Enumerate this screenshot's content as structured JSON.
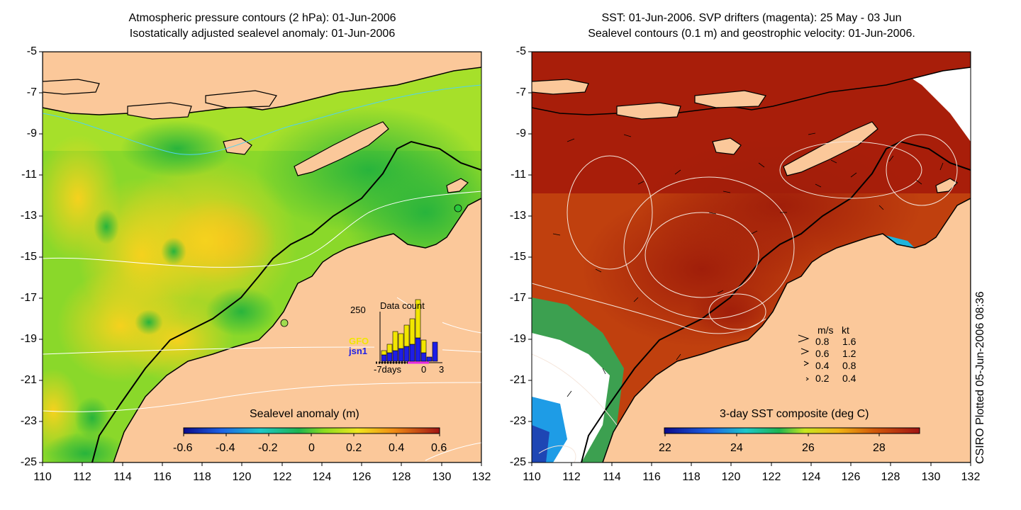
{
  "left_panel": {
    "title_line1": "Atmospheric pressure contours (2 hPa): 01-Jun-2006",
    "title_line2": "Isostatically adjusted sealevel anomaly: 01-Jun-2006",
    "colorbar_title": "Sealevel anomaly (m)",
    "colorbar_ticks": [
      "-0.6",
      "-0.4",
      "-0.2",
      "0",
      "0.2",
      "0.4",
      "0.6"
    ],
    "inset": {
      "title": "Data count",
      "y_tick": "250",
      "x_ticks": [
        "-7days",
        "0",
        "3"
      ],
      "sat1": "GFO",
      "sat2": "jsn1",
      "gfo_color": "#f2e600",
      "jsn1_color": "#1e1ee6",
      "bars": [
        {
          "gfo": 0.1,
          "jsn1": 0.15
        },
        {
          "gfo": 0.2,
          "jsn1": 0.2
        },
        {
          "gfo": 0.45,
          "jsn1": 0.25
        },
        {
          "gfo": 0.35,
          "jsn1": 0.3
        },
        {
          "gfo": 0.5,
          "jsn1": 0.35
        },
        {
          "gfo": 0.6,
          "jsn1": 0.4
        },
        {
          "gfo": 0.9,
          "jsn1": 0.55
        },
        {
          "gfo": 0.3,
          "jsn1": 0.2
        },
        {
          "gfo": 0.0,
          "jsn1": 0.1
        },
        {
          "gfo": 0.0,
          "jsn1": 0.45
        }
      ]
    }
  },
  "right_panel": {
    "title_line1": "SST: 01-Jun-2006. SVP drifters (magenta): 25 May - 03 Jun",
    "title_line2": "Sealevel contours (0.1 m) and geostrophic velocity: 01-Jun-2006.",
    "colorbar_title": "3-day SST composite (deg C)",
    "colorbar_ticks": [
      "22",
      "24",
      "26",
      "28"
    ],
    "velocity_legend": {
      "header_ms": "m/s",
      "header_kt": "kt",
      "rows": [
        {
          "ms": "0.8",
          "kt": "1.6"
        },
        {
          "ms": "0.6",
          "kt": "1.2"
        },
        {
          "ms": "0.4",
          "kt": "0.8"
        },
        {
          "ms": "0.2",
          "kt": "0.4"
        }
      ]
    }
  },
  "y_ticks": [
    "-5",
    "-7",
    "-9",
    "-11",
    "-13",
    "-15",
    "-17",
    "-19",
    "-21",
    "-23",
    "-25"
  ],
  "x_ticks": [
    "110",
    "112",
    "114",
    "116",
    "118",
    "120",
    "122",
    "124",
    "126",
    "128",
    "130",
    "132"
  ],
  "credit": "CSIRO Plotted 05-Jun-2006 08:36",
  "colors": {
    "land": "#fbc89a",
    "sla_bg": "#7fdc20",
    "sst_bg": "#b41e06"
  }
}
